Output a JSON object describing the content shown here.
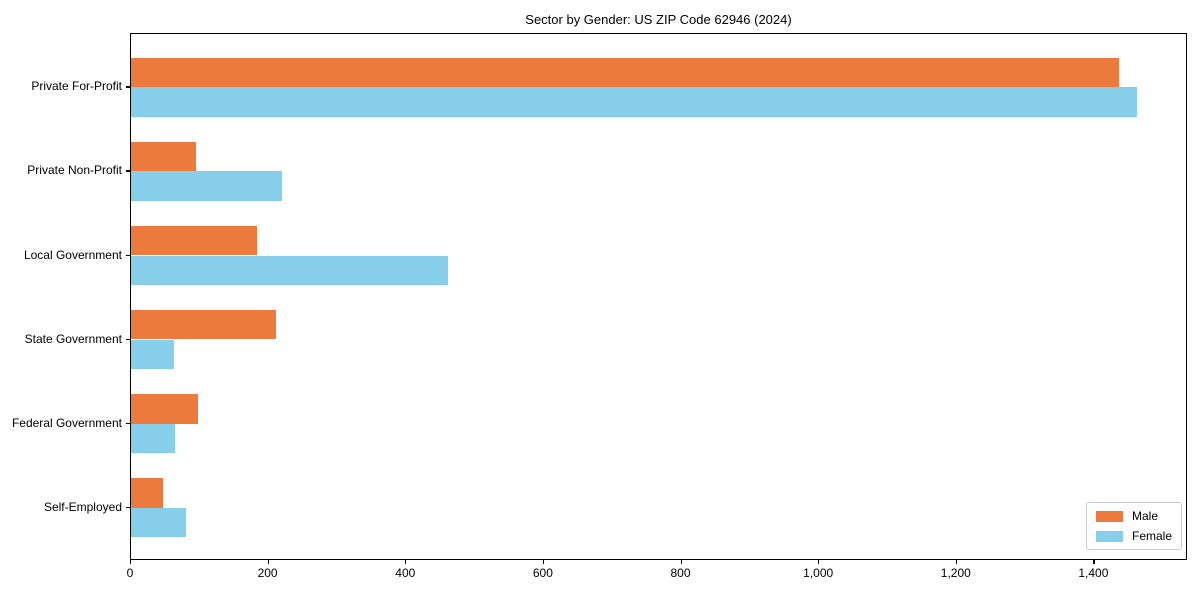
{
  "chart_data": {
    "type": "bar",
    "orientation": "horizontal",
    "title": "Sector by Gender: US ZIP Code 62946 (2024)",
    "categories": [
      "Private For-Profit",
      "Private Non-Profit",
      "Local Government",
      "State Government",
      "Federal Government",
      "Self-Employed"
    ],
    "series": [
      {
        "name": "Male",
        "color": "#EB7A3C",
        "values": [
          1435,
          95,
          183,
          210,
          98,
          46
        ]
      },
      {
        "name": "Female",
        "color": "#87CEEB",
        "values": [
          1462,
          220,
          460,
          62,
          64,
          80
        ]
      }
    ],
    "xlabel": "",
    "ylabel": "",
    "xlim": [
      0,
      1536
    ],
    "x_ticks": [
      0,
      200,
      400,
      600,
      800,
      1000,
      1200,
      1400
    ],
    "x_tick_labels": [
      "0",
      "200",
      "400",
      "600",
      "800",
      "1,000",
      "1,200",
      "1,400"
    ],
    "grid": false,
    "legend": {
      "position": "lower-right",
      "entries": [
        "Male",
        "Female"
      ]
    },
    "colors": {
      "male_bar": "#EB7A3C",
      "female_bar": "#87CEEB",
      "axis": "#000000",
      "legend_border": "#cccccc",
      "background": "#ffffff"
    }
  }
}
